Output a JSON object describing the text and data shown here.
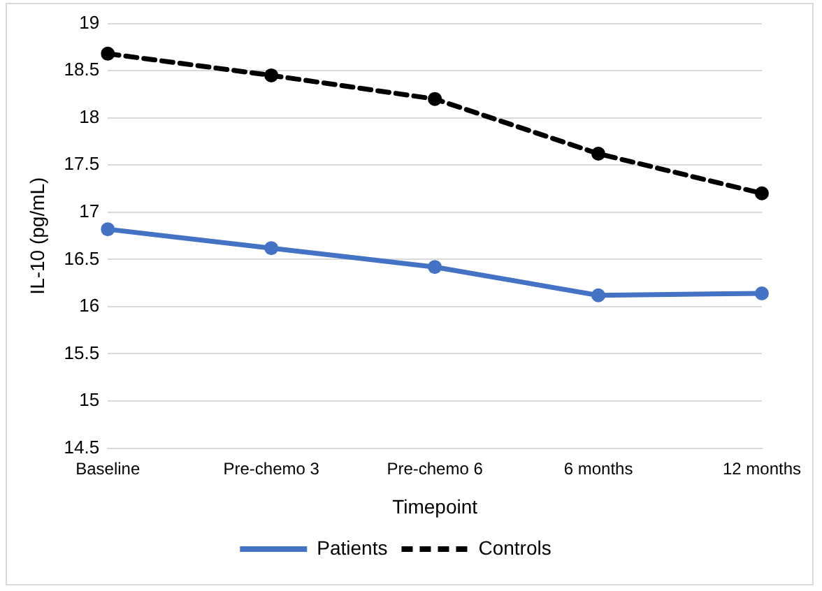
{
  "chart_data": {
    "type": "line",
    "xlabel": "Timepoint",
    "ylabel": "IL-10 (pg/mL)",
    "categories": [
      "Baseline",
      "Pre-chemo 3",
      "Pre-chemo 6",
      "6 months",
      "12 months"
    ],
    "series": [
      {
        "name": "Patients",
        "color": "#4472c4",
        "values": [
          16.82,
          16.62,
          16.42,
          16.12,
          16.14
        ]
      },
      {
        "name": "Controls",
        "color": "#000000",
        "values": [
          18.68,
          18.45,
          18.2,
          17.62,
          17.2
        ],
        "line_style": "dashed"
      }
    ],
    "ylim": [
      14.5,
      19
    ],
    "yticks": [
      14.5,
      15,
      15.5,
      16,
      16.5,
      17,
      17.5,
      18,
      18.5,
      19
    ],
    "grid": "y",
    "legend": "bottom",
    "marker": "circle",
    "line_style": "solid"
  }
}
